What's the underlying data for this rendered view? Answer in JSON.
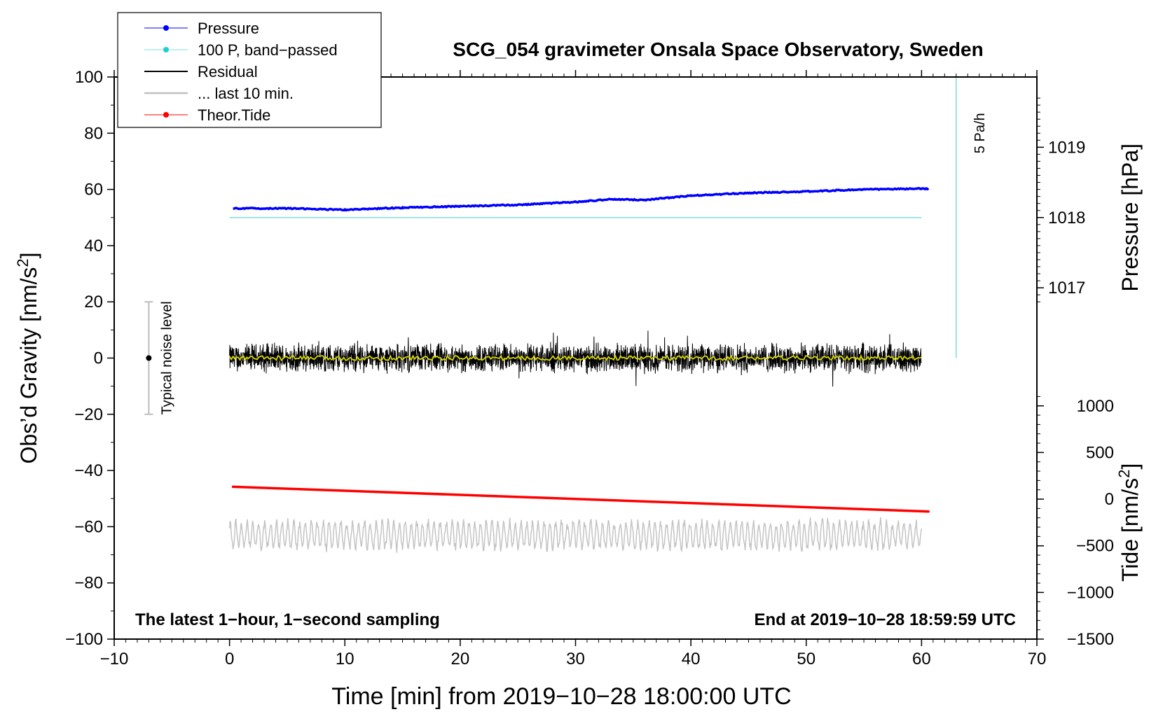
{
  "chart_data": {
    "type": "line",
    "title": "SCG_054 gravimeter Onsala Space Observatory, Sweden",
    "xlabel": "Time [min] from 2019−10−28 18:00:00 UTC",
    "ylabel_left_main": "Obs’d Gravity [nm/s",
    "ylabel_left_sup": "2",
    "ylabel_left_close": "]",
    "ylabel_right_pressure": "Pressure [hPa]",
    "ylabel_right_tide_main": "Tide [nm/s",
    "ylabel_right_tide_sup": "2",
    "ylabel_right_tide_close": "]",
    "xlim": [
      -10,
      70
    ],
    "ylim": [
      -100,
      100
    ],
    "x_ticks": [
      "−10",
      "0",
      "10",
      "20",
      "30",
      "40",
      "50",
      "60",
      "70"
    ],
    "y_ticks": [
      "−100",
      "−80",
      "−60",
      "−40",
      "−20",
      "0",
      "20",
      "40",
      "60",
      "80",
      "100"
    ],
    "pressure_axis": {
      "ticks": [
        "1017",
        "1018",
        "1019"
      ],
      "ref_pressure": 1018,
      "ref_gravity": 50,
      "nms2_per_hpa": 25
    },
    "tide_axis": {
      "ticks": [
        "−1500",
        "−1000",
        "−500",
        "0",
        "500",
        "1000"
      ],
      "range": [
        -1500,
        1000
      ],
      "gravity_range": [
        -100,
        -17
      ]
    },
    "noise_bar": {
      "label": "Typical noise level",
      "x": -7,
      "center": 0,
      "half_range": 20
    },
    "rate_bar": {
      "label": "5 Pa/h",
      "x": 63,
      "from": 0,
      "to": 100
    },
    "annotations": {
      "left": "The latest 1−hour, 1−second sampling",
      "right": "End at 2019−10−28 18:59:59 UTC"
    },
    "series": [
      {
        "name": "Pressure",
        "color": "#0000ff",
        "unit": "hPa",
        "x": [
          0.3,
          5,
          10,
          15,
          20,
          25,
          30,
          33,
          36,
          40,
          45,
          50,
          55,
          60,
          60.6
        ],
        "values": [
          1018.13,
          1018.13,
          1018.11,
          1018.14,
          1018.16,
          1018.18,
          1018.22,
          1018.26,
          1018.25,
          1018.31,
          1018.35,
          1018.37,
          1018.4,
          1018.41,
          1018.41
        ]
      },
      {
        "name": "100 P, band−passed",
        "color": "#40d0d0",
        "x": [
          0,
          60
        ],
        "values": [
          50,
          50
        ]
      },
      {
        "name": "Residual",
        "color": "#000000",
        "x": [
          0,
          60
        ],
        "values": [
          0,
          0
        ],
        "noise_amplitude": 4
      },
      {
        "name": "... last 10 min.",
        "color": "#c0c0c0",
        "x": [
          0,
          60
        ],
        "values": [
          -63,
          -63
        ],
        "oscillation_amplitude": 5
      },
      {
        "name": "Theor.Tide",
        "color": "#ff0000",
        "x": [
          0.3,
          60.6
        ],
        "values": [
          -45.8,
          -54.6
        ]
      }
    ],
    "smoothed_residual": {
      "color": "#d8d800"
    },
    "legend_position": "top-left"
  }
}
